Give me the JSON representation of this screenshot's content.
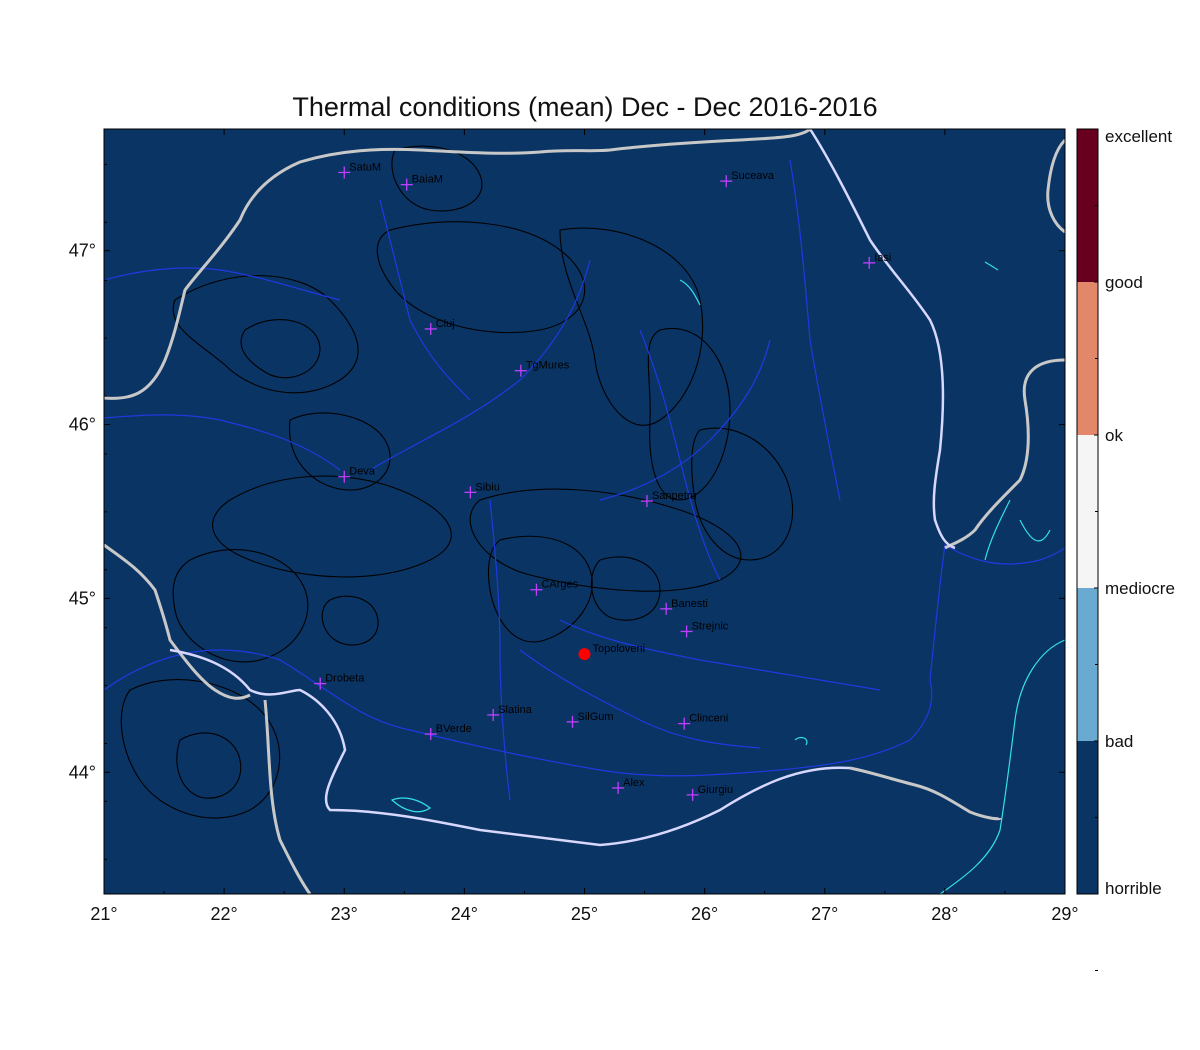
{
  "title": "Thermal conditions (mean) Dec - Dec  2016-2016",
  "colors": {
    "horrible": "#0a3464",
    "bad": "#6aaad0",
    "mediocre": "#f5f5f5",
    "ok": "#e2876a",
    "good": "#67001f",
    "rivers": "#1f3ae0",
    "borders": "#c8c8c8",
    "lakes": "#33e0ea",
    "contours": "#000000",
    "stations": "#c040ff",
    "highlight": "#ff0000"
  },
  "map": {
    "lon_range": [
      21,
      29
    ],
    "lat_range": [
      43.3,
      47.7
    ],
    "x_ticks": [
      {
        "value": 21,
        "label": "21°"
      },
      {
        "value": 22,
        "label": "22°"
      },
      {
        "value": 23,
        "label": "23°"
      },
      {
        "value": 24,
        "label": "24°"
      },
      {
        "value": 25,
        "label": "25°"
      },
      {
        "value": 26,
        "label": "26°"
      },
      {
        "value": 27,
        "label": "27°"
      },
      {
        "value": 28,
        "label": "28°"
      },
      {
        "value": 29,
        "label": "29°"
      }
    ],
    "y_ticks": [
      {
        "value": 44,
        "label": "44°"
      },
      {
        "value": 45,
        "label": "45°"
      },
      {
        "value": 46,
        "label": "46°"
      },
      {
        "value": 47,
        "label": "47°"
      }
    ],
    "stations": [
      {
        "name": "SatuM",
        "lon": 23.0,
        "lat": 47.45
      },
      {
        "name": "BaiaM",
        "lon": 23.52,
        "lat": 47.38
      },
      {
        "name": "Suceava",
        "lon": 26.18,
        "lat": 47.4
      },
      {
        "name": "Iasi",
        "lon": 27.37,
        "lat": 46.93
      },
      {
        "name": "Cluj",
        "lon": 23.72,
        "lat": 46.55
      },
      {
        "name": "TgMures",
        "lon": 24.47,
        "lat": 46.31
      },
      {
        "name": "Deva",
        "lon": 23.0,
        "lat": 45.7
      },
      {
        "name": "Sibiu",
        "lon": 24.05,
        "lat": 45.61
      },
      {
        "name": "Sanpetru",
        "lon": 25.52,
        "lat": 45.56
      },
      {
        "name": "CArges",
        "lon": 24.6,
        "lat": 45.05
      },
      {
        "name": "Banesti",
        "lon": 25.68,
        "lat": 44.94
      },
      {
        "name": "Strejnic",
        "lon": 25.85,
        "lat": 44.81
      },
      {
        "name": "Drobeta",
        "lon": 22.8,
        "lat": 44.51
      },
      {
        "name": "Slatina",
        "lon": 24.24,
        "lat": 44.33
      },
      {
        "name": "SilGum",
        "lon": 24.9,
        "lat": 44.29
      },
      {
        "name": "Clinceni",
        "lon": 25.83,
        "lat": 44.28
      },
      {
        "name": "BVerde",
        "lon": 23.72,
        "lat": 44.22
      },
      {
        "name": "Alex",
        "lon": 25.28,
        "lat": 43.91
      },
      {
        "name": "Giurgiu",
        "lon": 25.9,
        "lat": 43.87
      }
    ],
    "highlight": {
      "name": "Topoloveni",
      "lon": 25.0,
      "lat": 44.68
    }
  },
  "legend": {
    "classes": [
      {
        "label": "excellent",
        "color": "#67001f"
      },
      {
        "label": "good",
        "color": "#e2876a"
      },
      {
        "label": "ok",
        "color": "#f5f5f5"
      },
      {
        "label": "mediocre",
        "color": "#6aaad0"
      },
      {
        "label": "bad",
        "color": "#0a3464"
      },
      {
        "label": "horrible",
        "color": ""
      }
    ]
  }
}
